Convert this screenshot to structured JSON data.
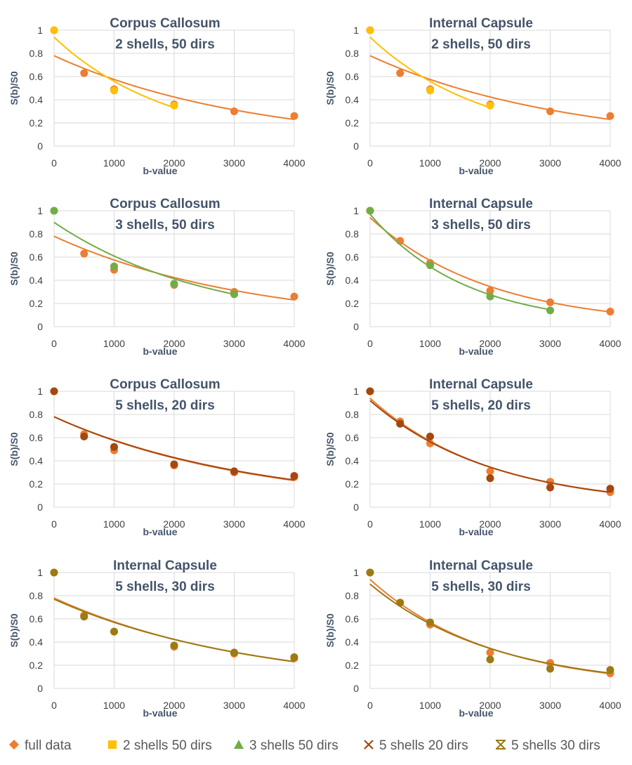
{
  "colors": {
    "full_data": "#ED7D31",
    "two_shells_50": "#FFC000",
    "three_shells_50": "#70AD47",
    "five_shells_20": "#A5470F",
    "five_shells_30": "#9C7A12",
    "grid": "#D9D9D9",
    "text": "#44546A",
    "tick": "#404040"
  },
  "legend": [
    {
      "label": "full data",
      "color": "#ED7D31",
      "marker": "diamond"
    },
    {
      "label": "2 shells 50 dirs",
      "color": "#FFC000",
      "marker": "square"
    },
    {
      "label": "3 shells 50 dirs",
      "color": "#70AD47",
      "marker": "triangle"
    },
    {
      "label": "5 shells 20 dirs",
      "color": "#A5470F",
      "marker": "x"
    },
    {
      "label": "5 shells 30 dirs",
      "color": "#9C7A12",
      "marker": "star"
    }
  ],
  "chart_data": [
    {
      "type": "scatter",
      "title": [
        "Corpus Callosum",
        "2 shells, 50 dirs"
      ],
      "xlabel": "b-value",
      "ylabel": "S(b)/S0",
      "xlim": [
        0,
        4000
      ],
      "ylim": [
        0,
        1
      ],
      "xticks": [
        "0",
        "1000",
        "2000",
        "3000",
        "4000"
      ],
      "yticks": [
        "0",
        "0.2",
        "0.4",
        "0.6",
        "0.8",
        "1"
      ],
      "grid": true,
      "series": [
        {
          "key": "full_data",
          "x": [
            0,
            500,
            1000,
            2000,
            3000,
            4000
          ],
          "y": [
            1.0,
            0.63,
            0.49,
            0.36,
            0.3,
            0.26
          ],
          "fit": [
            0.78,
            0.000305
          ],
          "fit_range": [
            0,
            4000
          ]
        },
        {
          "key": "two_shells_50",
          "x": [
            0,
            1000,
            2000
          ],
          "y": [
            1.0,
            0.48,
            0.35
          ],
          "fit": [
            0.94,
            0.00052
          ],
          "fit_range": [
            0,
            2000
          ]
        }
      ]
    },
    {
      "type": "scatter",
      "title": [
        "Internal Capsule",
        "2 shells, 50 dirs"
      ],
      "xlabel": "b-value",
      "ylabel": "S(b)/S0",
      "xlim": [
        0,
        4000
      ],
      "ylim": [
        0,
        1
      ],
      "xticks": [
        "0",
        "1000",
        "2000",
        "3000",
        "4000"
      ],
      "yticks": [
        "0",
        "0.2",
        "0.4",
        "0.6",
        "0.8",
        "1"
      ],
      "grid": true,
      "series": [
        {
          "key": "full_data",
          "x": [
            0,
            500,
            1000,
            2000,
            3000,
            4000
          ],
          "y": [
            1.0,
            0.63,
            0.49,
            0.36,
            0.3,
            0.26
          ],
          "fit": [
            0.78,
            0.000305
          ],
          "fit_range": [
            0,
            4000
          ]
        },
        {
          "key": "two_shells_50",
          "x": [
            0,
            1000,
            2000
          ],
          "y": [
            1.0,
            0.48,
            0.35
          ],
          "fit": [
            0.94,
            0.00052
          ],
          "fit_range": [
            0,
            2000
          ]
        }
      ]
    },
    {
      "type": "scatter",
      "title": [
        "Corpus Callosum",
        "3 shells, 50 dirs"
      ],
      "xlabel": "b-value",
      "ylabel": "S(b)/S0",
      "xlim": [
        0,
        4000
      ],
      "ylim": [
        0,
        1
      ],
      "xticks": [
        "0",
        "1000",
        "2000",
        "3000",
        "4000"
      ],
      "yticks": [
        "0",
        "0.2",
        "0.4",
        "0.6",
        "0.8",
        "1"
      ],
      "grid": true,
      "series": [
        {
          "key": "full_data",
          "x": [
            0,
            500,
            1000,
            2000,
            3000,
            4000
          ],
          "y": [
            1.0,
            0.63,
            0.49,
            0.36,
            0.3,
            0.26
          ],
          "fit": [
            0.78,
            0.000305
          ],
          "fit_range": [
            0,
            4000
          ]
        },
        {
          "key": "three_shells_50",
          "x": [
            0,
            1000,
            2000,
            3000
          ],
          "y": [
            1.0,
            0.52,
            0.37,
            0.28
          ],
          "fit": [
            0.9,
            0.00039
          ],
          "fit_range": [
            0,
            3000
          ]
        }
      ]
    },
    {
      "type": "scatter",
      "title": [
        "Internal Capsule",
        "3 shells, 50 dirs"
      ],
      "xlabel": "b-value",
      "ylabel": "S(b)/S0",
      "xlim": [
        0,
        4000
      ],
      "ylim": [
        0,
        1
      ],
      "xticks": [
        "0",
        "1000",
        "2000",
        "3000",
        "4000"
      ],
      "yticks": [
        "0",
        "0.2",
        "0.4",
        "0.6",
        "0.8",
        "1"
      ],
      "grid": true,
      "series": [
        {
          "key": "full_data",
          "x": [
            0,
            500,
            1000,
            2000,
            3000,
            4000
          ],
          "y": [
            1.0,
            0.74,
            0.55,
            0.31,
            0.21,
            0.13
          ],
          "fit": [
            0.94,
            0.0005
          ],
          "fit_range": [
            0,
            4000
          ]
        },
        {
          "key": "three_shells_50",
          "x": [
            0,
            1000,
            2000,
            3000
          ],
          "y": [
            1.0,
            0.53,
            0.26,
            0.14
          ],
          "fit": [
            0.97,
            0.00063
          ],
          "fit_range": [
            0,
            3000
          ]
        }
      ]
    },
    {
      "type": "scatter",
      "title": [
        "Corpus Callosum",
        "5 shells, 20 dirs"
      ],
      "xlabel": "b-value",
      "ylabel": "S(b)/S0",
      "xlim": [
        0,
        4000
      ],
      "ylim": [
        0,
        1
      ],
      "xticks": [
        "0",
        "1000",
        "2000",
        "3000",
        "4000"
      ],
      "yticks": [
        "0",
        "0.2",
        "0.4",
        "0.6",
        "0.8",
        "1"
      ],
      "grid": true,
      "series": [
        {
          "key": "full_data",
          "x": [
            0,
            500,
            1000,
            2000,
            3000,
            4000
          ],
          "y": [
            1.0,
            0.63,
            0.49,
            0.36,
            0.3,
            0.26
          ],
          "fit": [
            0.78,
            0.000305
          ],
          "fit_range": [
            0,
            4000
          ]
        },
        {
          "key": "five_shells_20",
          "x": [
            0,
            500,
            1000,
            2000,
            3000,
            4000
          ],
          "y": [
            1.0,
            0.61,
            0.52,
            0.37,
            0.31,
            0.27
          ],
          "fit": [
            0.78,
            0.0003
          ],
          "fit_range": [
            0,
            4000
          ]
        }
      ]
    },
    {
      "type": "scatter",
      "title": [
        "Internal Capsule",
        "5 shells, 20 dirs"
      ],
      "xlabel": "b-value",
      "ylabel": "S(b)/S0",
      "xlim": [
        0,
        4000
      ],
      "ylim": [
        0,
        1
      ],
      "xticks": [
        "0",
        "1000",
        "2000",
        "3000",
        "4000"
      ],
      "yticks": [
        "0",
        "0.2",
        "0.4",
        "0.6",
        "0.8",
        "1"
      ],
      "grid": true,
      "series": [
        {
          "key": "full_data",
          "x": [
            0,
            500,
            1000,
            2000,
            3000,
            4000
          ],
          "y": [
            1.0,
            0.74,
            0.55,
            0.31,
            0.22,
            0.13
          ],
          "fit": [
            0.94,
            0.0005
          ],
          "fit_range": [
            0,
            4000
          ]
        },
        {
          "key": "five_shells_20",
          "x": [
            0,
            500,
            1000,
            2000,
            3000,
            4000
          ],
          "y": [
            1.0,
            0.72,
            0.61,
            0.25,
            0.17,
            0.16
          ],
          "fit": [
            0.92,
            0.00049
          ],
          "fit_range": [
            0,
            4000
          ]
        }
      ]
    },
    {
      "type": "scatter",
      "title": [
        "Internal Capsule",
        "5 shells, 30 dirs"
      ],
      "xlabel": "b-value",
      "ylabel": "S(b)/S0",
      "xlim": [
        0,
        4000
      ],
      "ylim": [
        0,
        1
      ],
      "xticks": [
        "0",
        "1000",
        "2000",
        "3000",
        "4000"
      ],
      "yticks": [
        "0",
        "0.2",
        "0.4",
        "0.6",
        "0.8",
        "1"
      ],
      "grid": true,
      "series": [
        {
          "key": "full_data",
          "x": [
            0,
            500,
            1000,
            2000,
            3000,
            4000
          ],
          "y": [
            1.0,
            0.63,
            0.49,
            0.36,
            0.3,
            0.26
          ],
          "fit": [
            0.78,
            0.000305
          ],
          "fit_range": [
            0,
            4000
          ]
        },
        {
          "key": "five_shells_30",
          "x": [
            0,
            500,
            1000,
            2000,
            3000,
            4000
          ],
          "y": [
            1.0,
            0.62,
            0.49,
            0.37,
            0.31,
            0.27
          ],
          "fit": [
            0.77,
            0.0003
          ],
          "fit_range": [
            0,
            4000
          ]
        }
      ]
    },
    {
      "type": "scatter",
      "title": [
        "Internal Capsule",
        "5 shells, 30 dirs"
      ],
      "xlabel": "b-value",
      "ylabel": "S(b)/S0",
      "xlim": [
        0,
        4000
      ],
      "ylim": [
        0,
        1
      ],
      "xticks": [
        "0",
        "1000",
        "2000",
        "3000",
        "4000"
      ],
      "yticks": [
        "0",
        "0.2",
        "0.4",
        "0.6",
        "0.8",
        "1"
      ],
      "grid": true,
      "series": [
        {
          "key": "full_data",
          "x": [
            0,
            500,
            1000,
            2000,
            3000,
            4000
          ],
          "y": [
            1.0,
            0.74,
            0.55,
            0.31,
            0.22,
            0.13
          ],
          "fit": [
            0.94,
            0.0005
          ],
          "fit_range": [
            0,
            4000
          ]
        },
        {
          "key": "five_shells_30",
          "x": [
            0,
            500,
            1000,
            2000,
            3000,
            4000
          ],
          "y": [
            1.0,
            0.74,
            0.57,
            0.25,
            0.17,
            0.16
          ],
          "fit": [
            0.9,
            0.00048
          ],
          "fit_range": [
            0,
            4000
          ]
        }
      ]
    }
  ]
}
